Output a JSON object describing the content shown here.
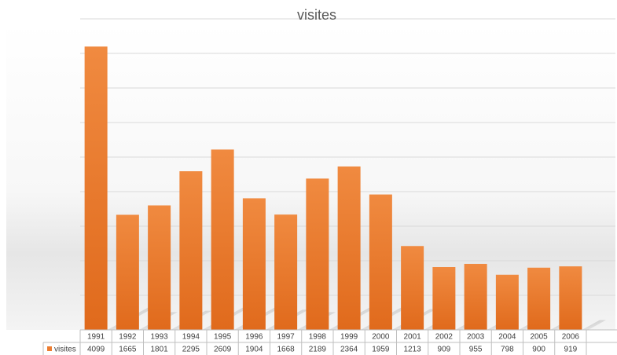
{
  "chart_data": {
    "type": "bar",
    "title": "visites",
    "categories": [
      "1991",
      "1992",
      "1993",
      "1994",
      "1995",
      "1996",
      "1997",
      "1998",
      "1999",
      "2000",
      "2001",
      "2002",
      "2003",
      "2004",
      "2005",
      "2006"
    ],
    "series": [
      {
        "name": "visites",
        "values": [
          4099,
          1665,
          1801,
          2295,
          2609,
          1904,
          1668,
          2189,
          2364,
          1959,
          1213,
          909,
          955,
          798,
          900,
          919
        ],
        "color": "#ed7d31"
      }
    ],
    "ylim": [
      0,
      4500
    ],
    "grid": true,
    "legend": "data-table"
  }
}
